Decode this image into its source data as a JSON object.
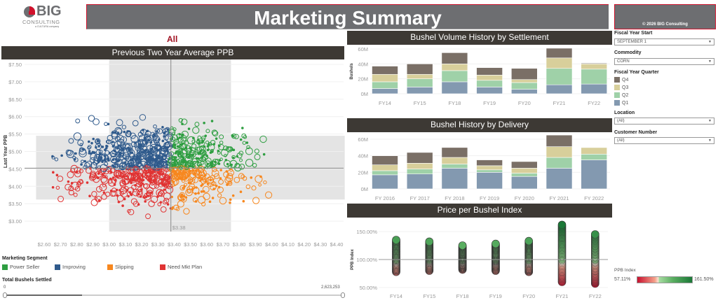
{
  "logo": {
    "big": "BIG",
    "consulting": "CONSULTING",
    "tagline": "a CULTURA company"
  },
  "title": "Marketing Summary",
  "copyright": "© 2026 BIG Consulting",
  "filter_label": "All",
  "colors": {
    "power_seller": "#2e9e41",
    "improving": "#2f5a8c",
    "slipping": "#f7871e",
    "need_plan": "#e03333",
    "q4": "#7a6f66",
    "q3": "#d8cf9b",
    "q2": "#9fd1a8",
    "q1": "#8399b0"
  },
  "scatter": {
    "title": "Previous Two Year Average PPB",
    "ylabel": "Last Year PPB",
    "x_ticks": [
      "$2.60",
      "$2.70",
      "$2.80",
      "$2.90",
      "$3.00",
      "$3.10",
      "$3.20",
      "$3.30",
      "$3.40",
      "$3.50",
      "$3.60",
      "$3.70",
      "$3.80",
      "$3.90",
      "$4.00",
      "$4.10",
      "$4.20",
      "$4.30",
      "$4.40"
    ],
    "y_ticks": [
      "$7.50",
      "$7.00",
      "$6.50",
      "$6.00",
      "$5.50",
      "$5.00",
      "$4.50",
      "$4.00",
      "$3.50",
      "$3.00"
    ],
    "ref_x_label": "$3.38"
  },
  "segment_legend": {
    "title": "Marketing Segment",
    "items": [
      {
        "label": "Power Seller",
        "key": "power_seller"
      },
      {
        "label": "Improving",
        "key": "improving"
      },
      {
        "label": "Slipping",
        "key": "slipping"
      },
      {
        "label": "Need Mkt Plan",
        "key": "need_plan"
      }
    ]
  },
  "slider": {
    "title": "Total Bushels Settled",
    "min": "0",
    "max": "2,623,253",
    "selected_fraction": 0.23
  },
  "filters": {
    "fiscal_year_start": {
      "label": "Fiscal Year Start",
      "value": "SEPTEMBER 1"
    },
    "commodity": {
      "label": "Commodity",
      "value": "CORN"
    },
    "quarter": {
      "label": "Fiscal Year Quarter",
      "items": [
        "Q4",
        "Q3",
        "Q2",
        "Q1"
      ]
    },
    "location": {
      "label": "Location",
      "value": "(All)"
    },
    "customer": {
      "label": "Customer Number",
      "value": "(All)"
    }
  },
  "ppb_legend": {
    "title": "PPB Index",
    "min": "57.11%",
    "max": "161.50%"
  },
  "chart_data": [
    {
      "type": "scatter",
      "title": "Previous Two Year Average PPB",
      "xlabel": "",
      "ylabel": "Last Year PPB",
      "xlim": [
        2.55,
        4.45
      ],
      "ylim": [
        2.7,
        7.5
      ],
      "ref_x": 3.38,
      "ref_y": 4.52,
      "band_x": [
        3.0,
        3.75
      ],
      "band_y": [
        3.62,
        5.45
      ],
      "point_count": 1100
    },
    {
      "type": "bar",
      "stacked": true,
      "title": "Bushel Volume History by Settlement",
      "ylabel": "Bushels",
      "categories": [
        "FY14",
        "FY15",
        "FY18",
        "FY19",
        "FY20",
        "FY21",
        "FY22"
      ],
      "y_ticks": [
        "60M",
        "40M",
        "20M",
        "0M"
      ],
      "ylim": [
        0,
        62
      ],
      "series": [
        {
          "name": "Q1",
          "values": [
            7,
            9,
            16,
            9,
            6,
            12,
            13
          ]
        },
        {
          "name": "Q2",
          "values": [
            9,
            11,
            15,
            9,
            9,
            22,
            20
          ]
        },
        {
          "name": "Q3",
          "values": [
            10,
            6,
            9,
            7,
            4,
            14,
            7
          ]
        },
        {
          "name": "Q4",
          "values": [
            11,
            14,
            15,
            10,
            15,
            13,
            1
          ]
        }
      ]
    },
    {
      "type": "bar",
      "stacked": true,
      "title": "Bushel History by Delivery",
      "ylabel": "",
      "categories": [
        "FY 2016",
        "FY 2017",
        "FY 2018",
        "FY 2019",
        "FY 2020",
        "FY 2021",
        "FY 2022"
      ],
      "y_ticks": [
        "60M",
        "40M",
        "20M",
        "0M"
      ],
      "ylim": [
        0,
        66
      ],
      "series": [
        {
          "name": "Q1",
          "values": [
            17,
            18,
            25,
            20,
            15,
            25,
            35
          ]
        },
        {
          "name": "Q2",
          "values": [
            5,
            6,
            5,
            3,
            4,
            13,
            7
          ]
        },
        {
          "name": "Q3",
          "values": [
            7,
            7,
            8,
            5,
            6,
            13,
            8
          ]
        },
        {
          "name": "Q4",
          "values": [
            11,
            13,
            12,
            7,
            8,
            14,
            0.5
          ]
        }
      ]
    },
    {
      "type": "scatter",
      "title": "Price per Bushel Index",
      "ylabel": "PPB Index",
      "categories": [
        "FY14",
        "FY15",
        "FY18",
        "FY19",
        "FY20",
        "FY21",
        "FY22"
      ],
      "y_ticks": [
        "150.00%",
        "100.00%",
        "50.00%"
      ],
      "ylim": [
        45,
        165
      ],
      "ref_y": 100,
      "ranges": [
        [
          78,
          135
        ],
        [
          80,
          132
        ],
        [
          82,
          125
        ],
        [
          80,
          128
        ],
        [
          78,
          133
        ],
        [
          60,
          162
        ],
        [
          57,
          145
        ]
      ]
    }
  ]
}
